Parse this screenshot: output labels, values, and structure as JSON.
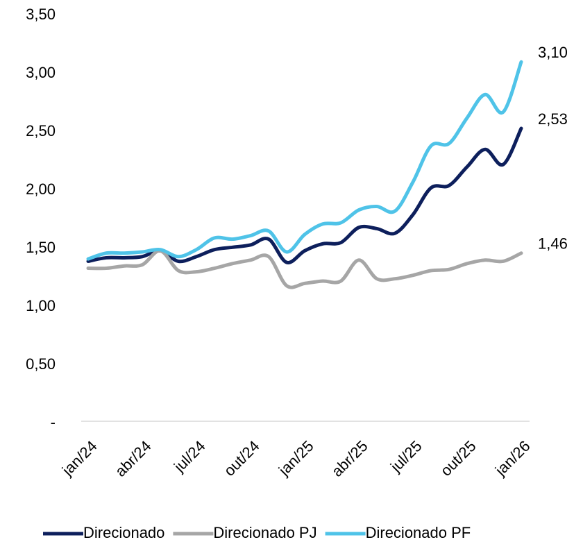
{
  "chart_data": {
    "type": "line",
    "categories": [
      "jan/24",
      null,
      null,
      "abr/24",
      null,
      null,
      "jul/24",
      null,
      null,
      "out/24",
      null,
      null,
      "jan/25",
      null,
      null,
      "abr/25",
      null,
      null,
      "jul/25",
      null,
      null,
      "out/25",
      null,
      null,
      "jan/26"
    ],
    "series": [
      {
        "name": "Direcionado",
        "color": "#0d1f5c",
        "values": [
          1.39,
          1.42,
          1.42,
          1.43,
          1.48,
          1.39,
          1.43,
          1.49,
          1.51,
          1.53,
          1.58,
          1.38,
          1.48,
          1.54,
          1.55,
          1.68,
          1.67,
          1.63,
          1.79,
          2.02,
          2.04,
          2.2,
          2.35,
          2.22,
          2.53
        ],
        "value_labels": [
          null,
          null,
          null,
          null,
          null,
          null,
          null,
          null,
          null,
          null,
          null,
          null,
          null,
          null,
          null,
          null,
          null,
          null,
          null,
          null,
          null,
          null,
          null,
          null,
          "2,53"
        ]
      },
      {
        "name": "Direcionado PJ",
        "color": "#a6a6a6",
        "values": [
          1.33,
          1.33,
          1.35,
          1.36,
          1.48,
          1.31,
          1.3,
          1.33,
          1.37,
          1.4,
          1.43,
          1.18,
          1.2,
          1.22,
          1.22,
          1.4,
          1.24,
          1.24,
          1.27,
          1.31,
          1.32,
          1.37,
          1.4,
          1.39,
          1.46
        ],
        "value_labels": [
          null,
          null,
          null,
          null,
          null,
          null,
          null,
          null,
          null,
          null,
          null,
          null,
          null,
          null,
          null,
          null,
          null,
          null,
          null,
          null,
          null,
          null,
          null,
          null,
          "1,46"
        ]
      },
      {
        "name": "Direcionado PF",
        "color": "#4fc3e8",
        "values": [
          1.41,
          1.46,
          1.46,
          1.47,
          1.49,
          1.43,
          1.49,
          1.59,
          1.58,
          1.61,
          1.65,
          1.47,
          1.62,
          1.71,
          1.72,
          1.83,
          1.86,
          1.82,
          2.07,
          2.38,
          2.4,
          2.62,
          2.82,
          2.67,
          3.1
        ],
        "value_labels": [
          null,
          null,
          null,
          null,
          null,
          null,
          null,
          null,
          null,
          null,
          null,
          null,
          null,
          null,
          null,
          null,
          null,
          null,
          null,
          null,
          null,
          null,
          null,
          null,
          "3,10"
        ]
      }
    ],
    "ylim": [
      0,
      3.5
    ],
    "yticks": [
      {
        "value": 0,
        "label": "-"
      },
      {
        "value": 0.5,
        "label": "0,50"
      },
      {
        "value": 1,
        "label": "1,00"
      },
      {
        "value": 1.5,
        "label": "1,50"
      },
      {
        "value": 2,
        "label": "2,00"
      },
      {
        "value": 2.5,
        "label": "2,50"
      },
      {
        "value": 3,
        "label": "3,00"
      },
      {
        "value": 3.5,
        "label": "3,50"
      }
    ],
    "legend": "bottom"
  }
}
